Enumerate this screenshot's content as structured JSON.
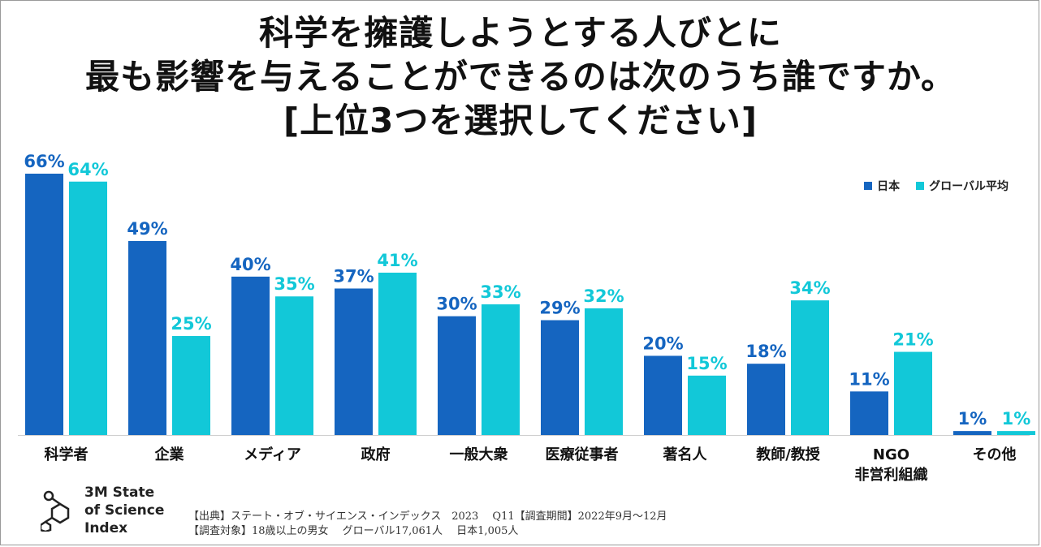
{
  "title_lines": [
    "科学を擁護しようとする人びとに",
    "最も影響を与えることができるのは次のうち誰ですか。",
    "[上位3つを選択してください]"
  ],
  "colors": {
    "japan": "#1565c0",
    "global": "#12c8d8",
    "text": "#111111"
  },
  "chart_data": {
    "type": "bar",
    "title": "科学を擁護しようとする人びとに最も影響を与えることができるのは次のうち誰ですか。[上位3つを選択してください]",
    "categories": [
      "科学者",
      "企業",
      "メディア",
      "政府",
      "一般大衆",
      "医療従事者",
      "著名人",
      "教師/教授",
      "NGO 非営利組織",
      "その他"
    ],
    "category_lines": [
      [
        "科学者"
      ],
      [
        "企業"
      ],
      [
        "メディア"
      ],
      [
        "政府"
      ],
      [
        "一般大衆"
      ],
      [
        "医療従事者"
      ],
      [
        "著名人"
      ],
      [
        "教師/教授"
      ],
      [
        "NGO",
        "非営利組織"
      ],
      [
        "その他"
      ]
    ],
    "series": [
      {
        "name": "日本",
        "values": [
          66,
          49,
          40,
          37,
          30,
          29,
          20,
          18,
          11,
          1
        ]
      },
      {
        "name": "グローバル平均",
        "values": [
          64,
          25,
          35,
          41,
          33,
          32,
          15,
          34,
          21,
          1
        ]
      }
    ],
    "value_suffix": "%",
    "legend_position": "top-right",
    "grid": false,
    "ylim": [
      0,
      66
    ]
  },
  "brand": {
    "lines": [
      "3M State",
      "of Science",
      "Index"
    ],
    "icon": "molecule-icon"
  },
  "source": {
    "line1": "【出典】ステート・オブ・サイエンス・インデックス　2023　 Q11【調査期間】2022年9月～12月",
    "line2": "【調査対象】18歳以上の男女　 グローバル17,061人　 日本1,005人"
  }
}
